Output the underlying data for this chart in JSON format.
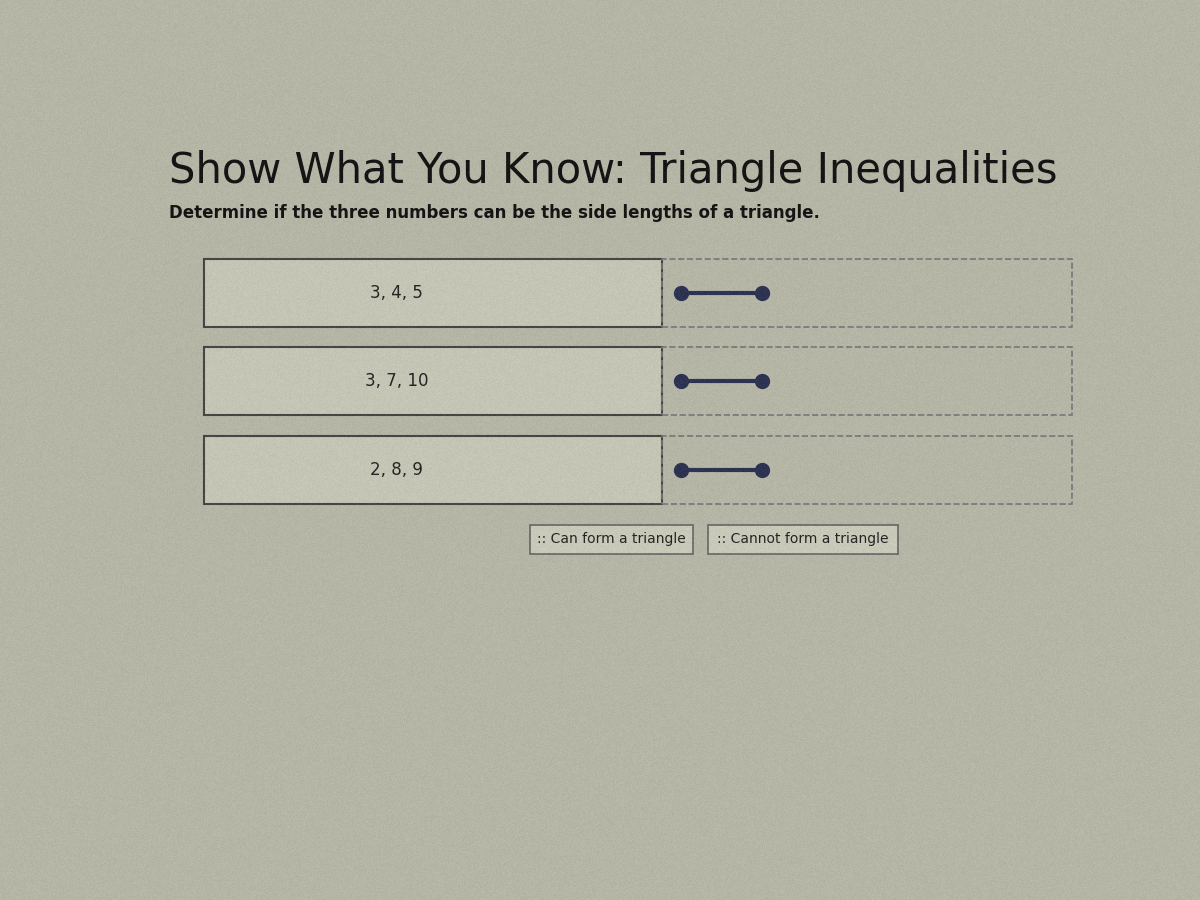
{
  "title": "Show What You Know: Triangle Inequalities",
  "subtitle": "Determine if the three numbers can be the side lengths of a triangle.",
  "rows": [
    {
      "label": "3, 4, 5"
    },
    {
      "label": "3, 7, 10"
    },
    {
      "label": "2, 8, 9"
    }
  ],
  "legend_items": [
    {
      "text": ":: Can form a triangle"
    },
    {
      "text": ":: Cannot form a triangle"
    }
  ],
  "bg_color": "#b8b8a8",
  "box_bg": "#c8c8b8",
  "box_border": "#444444",
  "line_color": "#2a3050",
  "dot_color": "#2a3050",
  "dashed_box_color": "#777777",
  "legend_box_color": "#ccccbc",
  "legend_border_color": "#666666",
  "title_fontsize": 30,
  "subtitle_fontsize": 12,
  "label_fontsize": 12,
  "noise_alpha": 0.04
}
